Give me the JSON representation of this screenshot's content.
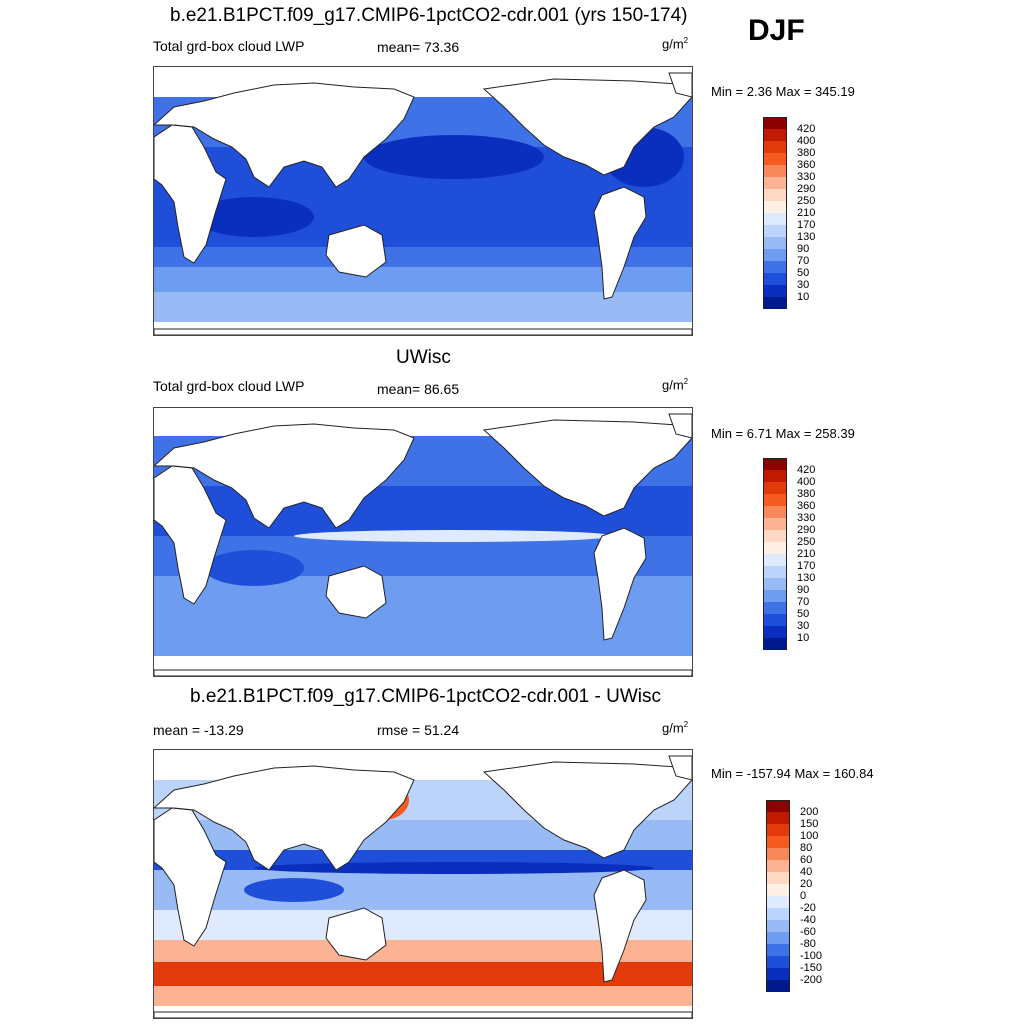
{
  "season": "DJF",
  "panels": [
    {
      "title": "b.e21.B1PCT.f09_g17.CMIP6-1pctCO2-cdr.001 (yrs 150-174)",
      "left_label": "Total grd-box cloud LWP",
      "center_label": "mean=  73.36",
      "unit": "g/m",
      "unit_sup": "2",
      "minmax": "Min =   2.36 Max = 345.19",
      "colorbar": {
        "ticks": [
          "420",
          "400",
          "380",
          "360",
          "330",
          "290",
          "250",
          "210",
          "170",
          "130",
          "90",
          "70",
          "50",
          "30",
          "10"
        ],
        "colors": [
          "#8b0000",
          "#c01a00",
          "#e23a0a",
          "#f55a1e",
          "#f8875a",
          "#fbb394",
          "#fdd9c4",
          "#fff0e6",
          "#dfeafc",
          "#bcd3fa",
          "#98bbf6",
          "#6e9cf0",
          "#3f72e6",
          "#1f4fd9",
          "#0a2fbf",
          "#001a8c"
        ]
      }
    },
    {
      "title": "UWisc",
      "left_label": "Total grd-box cloud LWP",
      "center_label": "mean=  86.65",
      "unit": "g/m",
      "unit_sup": "2",
      "minmax": "Min =   6.71 Max = 258.39",
      "colorbar": {
        "ticks": [
          "420",
          "400",
          "380",
          "360",
          "330",
          "290",
          "250",
          "210",
          "170",
          "130",
          "90",
          "70",
          "50",
          "30",
          "10"
        ],
        "colors": [
          "#8b0000",
          "#c01a00",
          "#e23a0a",
          "#f55a1e",
          "#f8875a",
          "#fbb394",
          "#fdd9c4",
          "#fff0e6",
          "#dfeafc",
          "#bcd3fa",
          "#98bbf6",
          "#6e9cf0",
          "#3f72e6",
          "#1f4fd9",
          "#0a2fbf",
          "#001a8c"
        ]
      }
    },
    {
      "title": "b.e21.B1PCT.f09_g17.CMIP6-1pctCO2-cdr.001 - UWisc",
      "left_label": "mean = -13.29",
      "center_label": "rmse =  51.24",
      "unit": "g/m",
      "unit_sup": "2",
      "minmax": "Min = -157.94 Max = 160.84",
      "colorbar": {
        "ticks": [
          "200",
          "150",
          "100",
          "80",
          "60",
          "40",
          "20",
          "0",
          "-20",
          "-40",
          "-60",
          "-80",
          "-100",
          "-150",
          "-200"
        ],
        "colors": [
          "#8b0000",
          "#c01a00",
          "#e23a0a",
          "#f55a1e",
          "#f8875a",
          "#fbb394",
          "#fdd9c4",
          "#fff0e6",
          "#dfeafc",
          "#bcd3fa",
          "#98bbf6",
          "#6e9cf0",
          "#3f72e6",
          "#1f4fd9",
          "#0a2fbf",
          "#001a8c"
        ]
      }
    }
  ]
}
